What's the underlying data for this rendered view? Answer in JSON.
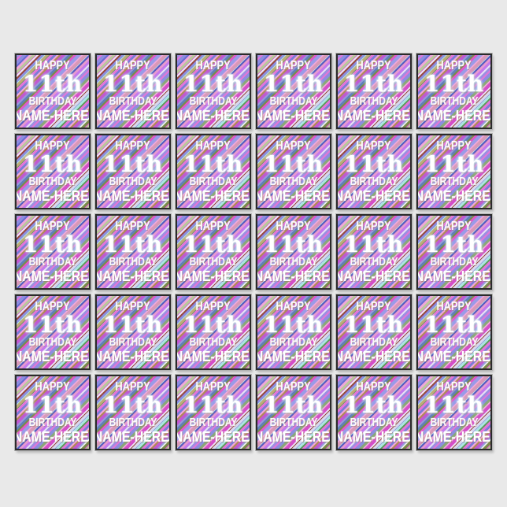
{
  "page": {
    "background_color": "#e9e9e9"
  },
  "grid": {
    "rows": 5,
    "columns": 6,
    "tile_count": 30
  },
  "tile": {
    "line1": "HAPPY",
    "line2": "11th",
    "line3": "BIRTHDAY",
    "line4": "NAME-HERE!",
    "text_color": "#ffffff",
    "border_color": "#2b2b2b",
    "edge_color": "#b2b2b2",
    "stripes": {
      "angle_deg": 135,
      "layers": [
        [
          [
            "transparent",
            14
          ],
          [
            "#b8c89a",
            3
          ],
          [
            "transparent",
            9
          ],
          [
            "#c0aa78",
            3
          ],
          [
            "transparent",
            17
          ],
          [
            "#6080b8",
            3
          ],
          [
            "transparent",
            11
          ],
          [
            "#d898b8",
            4
          ],
          [
            "transparent",
            20
          ],
          [
            "#88a878",
            3
          ],
          [
            "transparent",
            9
          ],
          [
            "#d8d8ee",
            3
          ],
          [
            "transparent",
            14
          ]
        ],
        [
          [
            "#9d8fe2",
            3
          ],
          [
            "#e276d8",
            2
          ],
          [
            "#8d8de0",
            4
          ],
          [
            "#6b6bd4",
            2
          ],
          [
            "#f0a8d8",
            3
          ],
          [
            "#d44fc8",
            4
          ],
          [
            "#ece6f8",
            2
          ],
          [
            "#9a4a42",
            2
          ],
          [
            "#8d8de0",
            3
          ],
          [
            "#abe3e0",
            3
          ],
          [
            "#5a9a55",
            2
          ],
          [
            "#e276d8",
            3
          ],
          [
            "#7b7bd8",
            3
          ],
          [
            "#f0a8d8",
            2
          ],
          [
            "#b08a54",
            2
          ],
          [
            "#c05ad0",
            4
          ],
          [
            "#9898dc",
            2
          ],
          [
            "#e8f0e8",
            2
          ],
          [
            "#7a8a4a",
            3
          ],
          [
            "#e05ac8",
            3
          ],
          [
            "#9a9ae8",
            4
          ],
          [
            "#f0a8d8",
            2
          ],
          [
            "#84422f",
            2
          ],
          [
            "#b6e6ea",
            3
          ],
          [
            "#5a5ac0",
            2
          ],
          [
            "#e89ad0",
            3
          ],
          [
            "#c478ec",
            3
          ],
          [
            "#e6e0f4",
            2
          ]
        ]
      ]
    }
  }
}
